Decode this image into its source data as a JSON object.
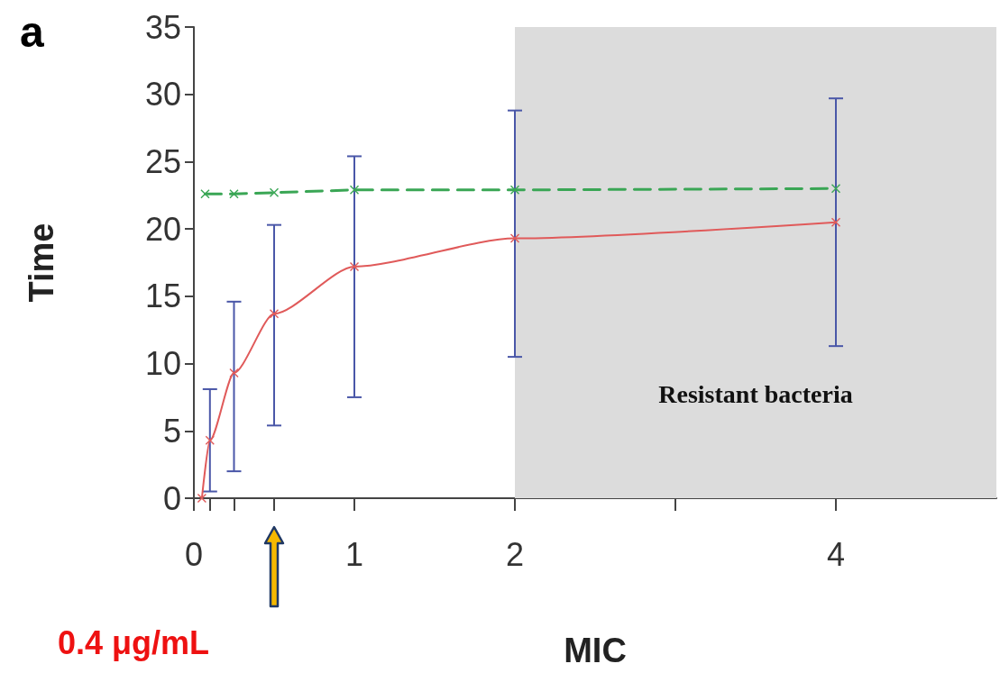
{
  "chart_data": {
    "type": "line",
    "title": "a",
    "xlabel": "MIC",
    "ylabel": "Time",
    "xlim": [
      0,
      5
    ],
    "ylim": [
      0,
      35
    ],
    "xticks": [
      0,
      {
        "value": 0.1,
        "label": null
      },
      {
        "value": 0.25,
        "label": null
      },
      {
        "value": 0.5,
        "label": null
      },
      1,
      2,
      {
        "value": 3,
        "label": null
      },
      4
    ],
    "yticks": [
      0,
      5,
      10,
      15,
      20,
      25,
      30,
      35
    ],
    "series": [
      {
        "color": "#e05a5a",
        "x": [
          0.05,
          0.1,
          0.25,
          0.5,
          1,
          2,
          4
        ],
        "values": [
          0,
          4.3,
          9.3,
          13.7,
          17.2,
          19.3,
          20.5
        ],
        "errors": [
          null,
          [
            0.5,
            8.1
          ],
          [
            2,
            14.6
          ],
          [
            5.4,
            20.3
          ],
          [
            7.5,
            25.4
          ],
          [
            10.5,
            28.8
          ],
          [
            11.3,
            29.7
          ]
        ],
        "line_style": "solid"
      },
      {
        "color": "#3aa655",
        "x": [
          0.07,
          0.25,
          0.5,
          1,
          2,
          4
        ],
        "values": [
          22.6,
          22.6,
          22.7,
          22.9,
          22.9,
          23.0
        ],
        "line_style": "dashed"
      }
    ],
    "marker": "cross",
    "grid": false,
    "bands": [
      {
        "axis": "x",
        "from": 2,
        "to": 5,
        "label": "Resistant bacteria",
        "color": "#dcdcdc"
      }
    ],
    "annotations": [
      "0.4 μg/mL"
    ]
  }
}
